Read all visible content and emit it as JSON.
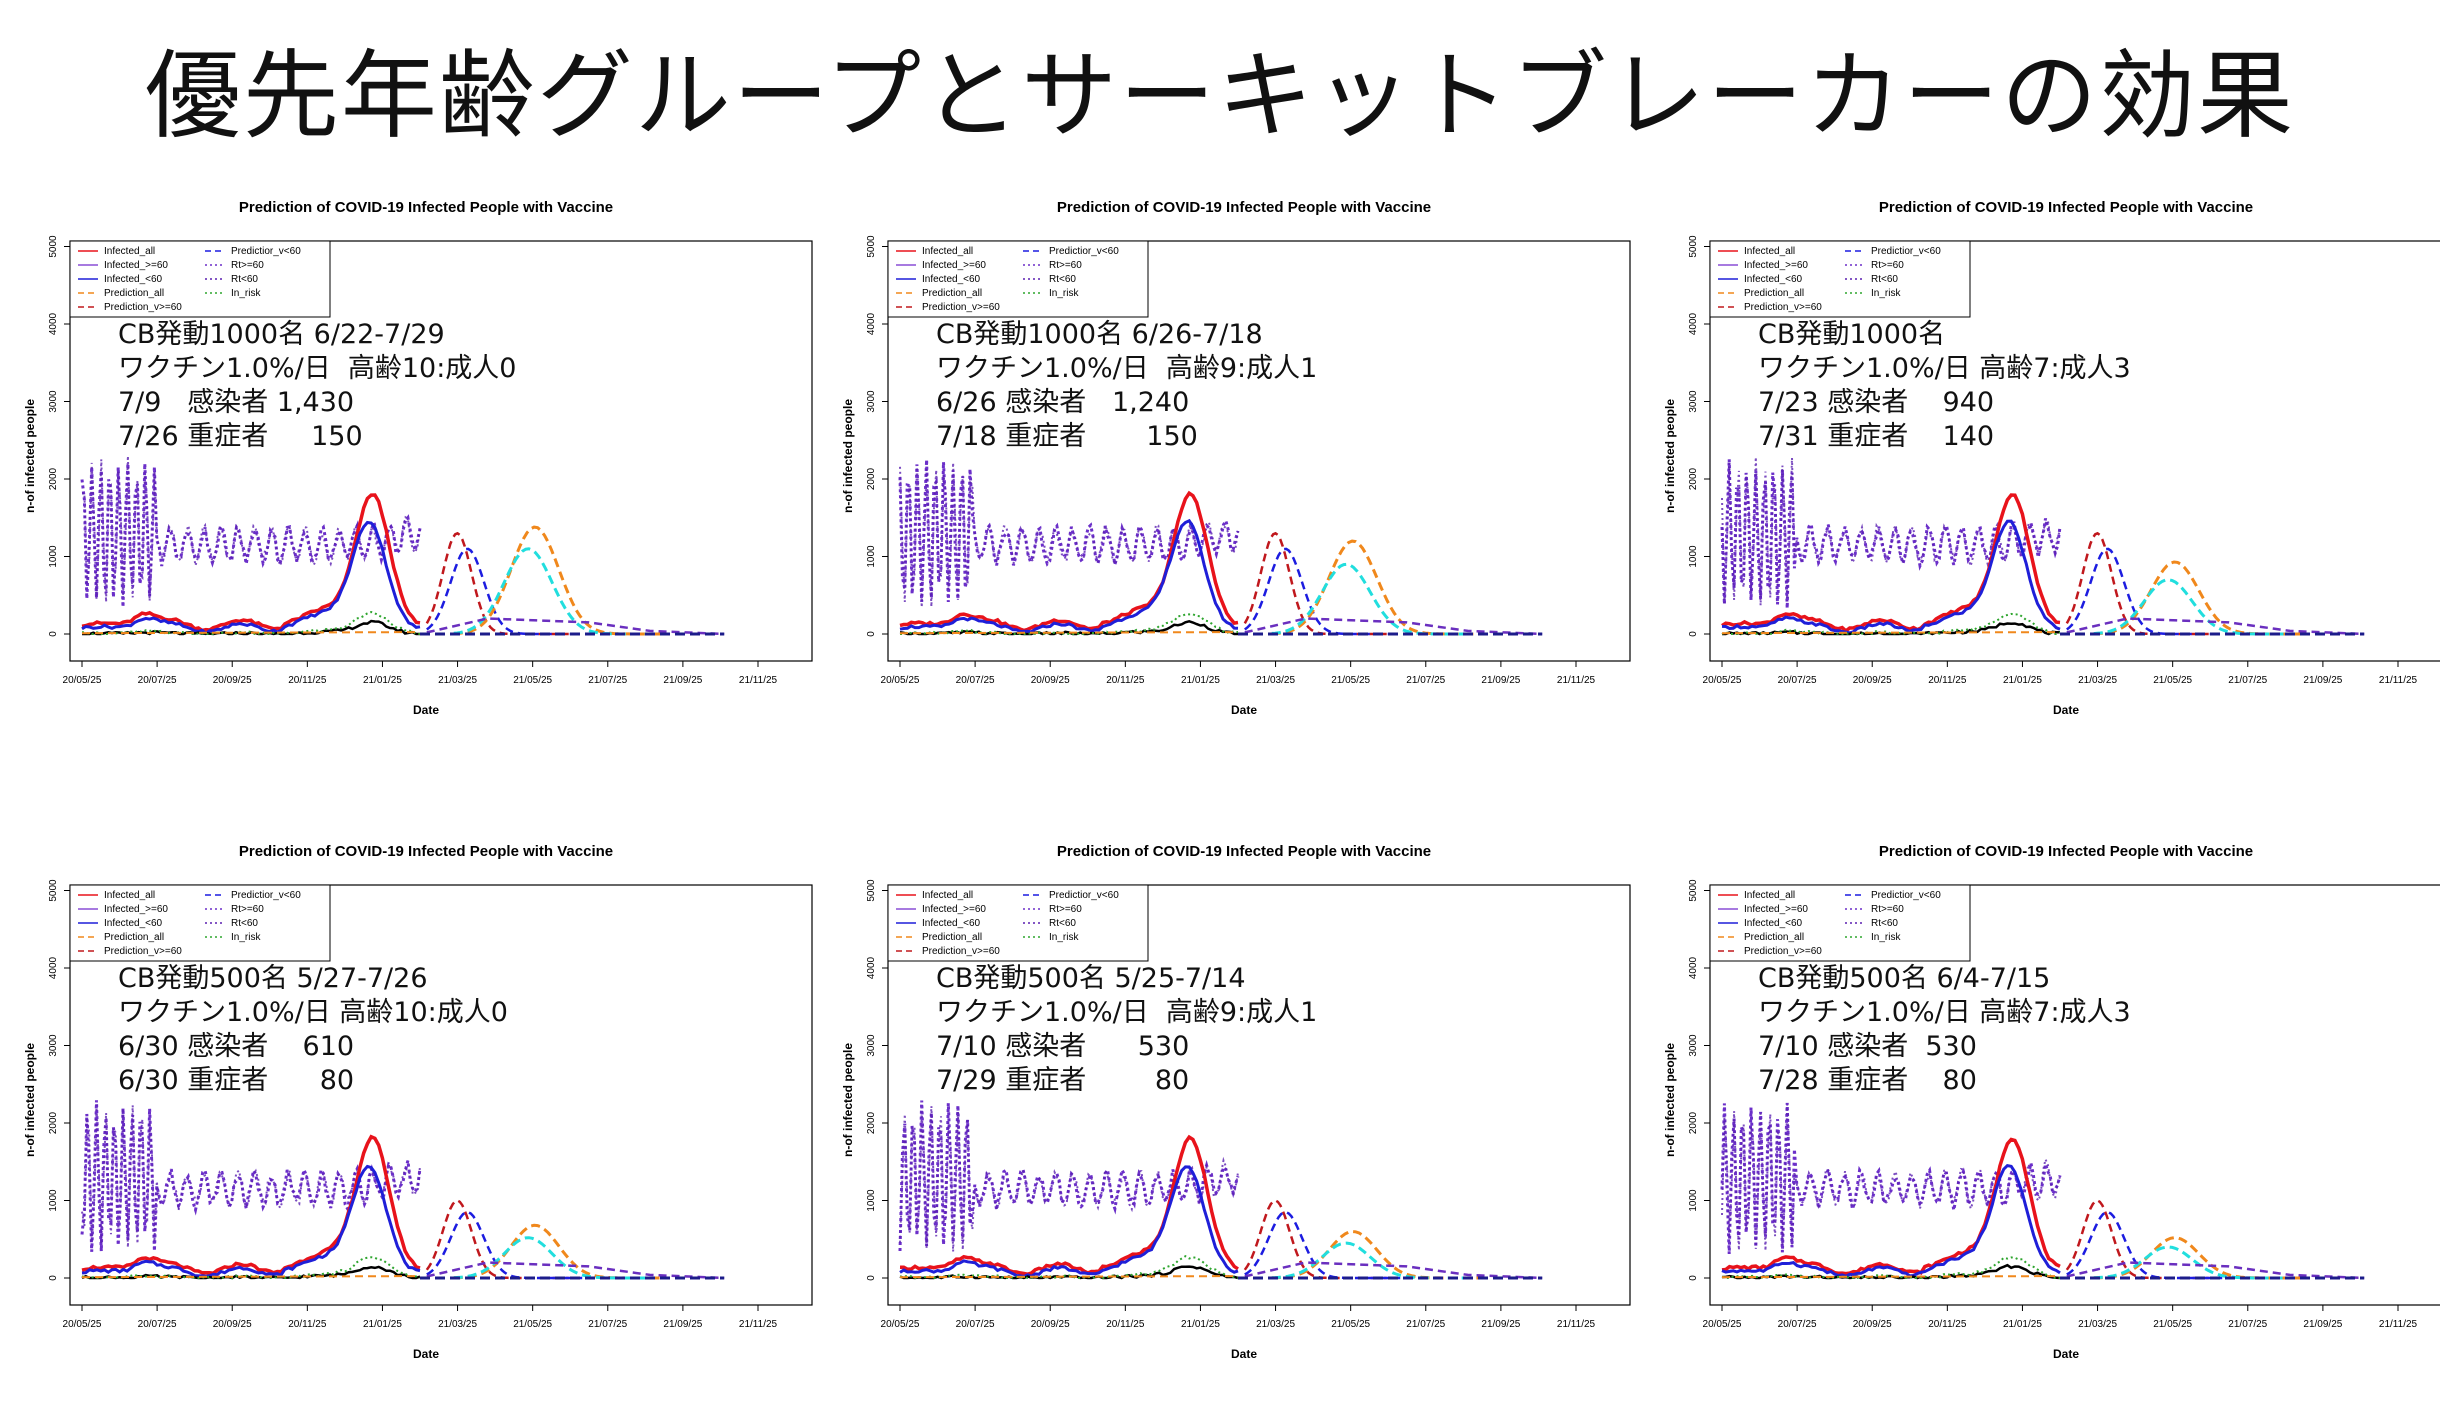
{
  "page": {
    "title": "優先年齢グループとサーキットブレーカーの効果"
  },
  "common": {
    "chart_title": "Prediction of COVID-19 Infected People with Vaccine",
    "xlabel": "Date",
    "ylabel": "n-of infected people",
    "x_ticks": [
      "20/05/25",
      "20/07/25",
      "20/09/25",
      "20/11/25",
      "21/01/25",
      "21/03/25",
      "21/05/25",
      "21/07/25",
      "21/09/25",
      "21/11/25"
    ],
    "y_ticks": [
      0,
      1000,
      2000,
      3000,
      4000,
      5000
    ],
    "legend_col1": [
      "Infected_all",
      "Infected_>=60",
      "Infected_<60",
      "Prediction_all",
      "Prediction_v>=60"
    ],
    "legend_col2": [
      "Predictior_v<60",
      "Rt>=60",
      "Rt<60",
      "In_risk"
    ],
    "colors": {
      "infected_all": "#e8131b",
      "infected_ge60": "#8a4fd6",
      "infected_lt60": "#1f1fd8",
      "prediction_all": "#f0881c",
      "prediction_ge60": "#c0181d",
      "prediction_lt60": "#1c1ce0",
      "rt_ge60": "#6b2fc9",
      "rt_lt60": "#5a1fb0",
      "in_risk": "#2ea52e",
      "cyan": "#21dede",
      "black": "#000000"
    }
  },
  "chart_data": [
    {
      "type": "line",
      "title": "Prediction of COVID-19 Infected People with Vaccine",
      "xlabel": "Date",
      "ylabel": "n-of infected people",
      "ylim": [
        0,
        5000
      ],
      "annotation": [
        "CB発動1000名 6/22-7/29",
        "ワクチン1.0%/日  高齢10:成人0",
        "7/9   感染者 1,430",
        "7/26 重症者     150"
      ],
      "pred_peaks": {
        "prediction_all": 1380,
        "cyan": 1100,
        "red": 1300,
        "blue": 1100
      }
    },
    {
      "type": "line",
      "title": "Prediction of COVID-19 Infected People with Vaccine",
      "xlabel": "Date",
      "ylabel": "n-of infected people",
      "ylim": [
        0,
        5000
      ],
      "annotation": [
        "CB発動1000名 6/26-7/18",
        "ワクチン1.0%/日  高齢9:成人1",
        "6/26 感染者   1,240",
        "7/18 重症者       150"
      ],
      "pred_peaks": {
        "prediction_all": 1200,
        "cyan": 900,
        "red": 1300,
        "blue": 1100
      }
    },
    {
      "type": "line",
      "title": "Prediction of COVID-19 Infected People with Vaccine",
      "xlabel": "Date",
      "ylabel": "n-of infected people",
      "ylim": [
        0,
        5000
      ],
      "annotation": [
        "CB発動1000名",
        "ワクチン1.0%/日 高齢7:成人3",
        "7/23 感染者    940",
        "7/31 重症者    140"
      ],
      "pred_peaks": {
        "prediction_all": 930,
        "cyan": 700,
        "red": 1300,
        "blue": 1100
      }
    },
    {
      "type": "line",
      "title": "Prediction of COVID-19 Infected People with Vaccine",
      "xlabel": "Date",
      "ylabel": "n-of infected people",
      "ylim": [
        0,
        5000
      ],
      "annotation": [
        "CB発動500名 5/27-7/26",
        "ワクチン1.0%/日 高齢10:成人0",
        "6/30 感染者    610",
        "6/30 重症者      80"
      ],
      "pred_peaks": {
        "prediction_all": 680,
        "cyan": 520,
        "red": 1000,
        "blue": 850
      }
    },
    {
      "type": "line",
      "title": "Prediction of COVID-19 Infected People with Vaccine",
      "xlabel": "Date",
      "ylabel": "n-of infected people",
      "ylim": [
        0,
        5000
      ],
      "annotation": [
        "CB発動500名 5/25-7/14",
        "ワクチン1.0%/日  高齢9:成人1",
        "7/10 感染者      530",
        "7/29 重症者        80"
      ],
      "pred_peaks": {
        "prediction_all": 600,
        "cyan": 450,
        "red": 1000,
        "blue": 850
      }
    },
    {
      "type": "line",
      "title": "Prediction of COVID-19 Infected People with Vaccine",
      "xlabel": "Date",
      "ylabel": "n-of infected people",
      "ylim": [
        0,
        5000
      ],
      "annotation": [
        "CB発動500名 6/4-7/15",
        "ワクチン1.0%/日 高齢7:成人3",
        "7/10 感染者  530",
        "7/28 重症者    80"
      ],
      "pred_peaks": {
        "prediction_all": 520,
        "cyan": 400,
        "red": 1000,
        "blue": 850
      }
    }
  ]
}
